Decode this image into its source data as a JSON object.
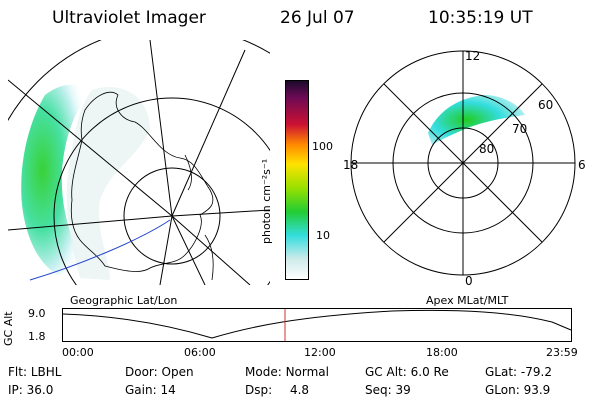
{
  "header": {
    "title": "Ultraviolet Imager",
    "date": "26 Jul 07",
    "time": "10:35:19 UT"
  },
  "colorbar": {
    "unit_label": "photon cm⁻²s⁻¹",
    "ticks": [
      "100",
      "10"
    ]
  },
  "panels": {
    "geographic_label": "Geographic Lat/Lon",
    "apex_label": "Apex MLat/MLT"
  },
  "polar_plot": {
    "mlt_labels": [
      "12",
      "18",
      "6",
      "0"
    ],
    "lat_labels": [
      "60",
      "70",
      "80"
    ]
  },
  "altitude_plot": {
    "ylabel": "GC Alt",
    "yticks": [
      "9.0",
      "1.8"
    ],
    "xticks": [
      "00:00",
      "06:00",
      "12:00",
      "18:00",
      "23:59"
    ]
  },
  "status": {
    "row1": [
      {
        "label": "Flt:",
        "value": "LBHL"
      },
      {
        "label": "Door:",
        "value": "Open"
      },
      {
        "label": "Mode:",
        "value": "Normal"
      },
      {
        "label": "GC Alt:",
        "value": "6.0 Re"
      },
      {
        "label": "GLat:",
        "value": "-79.2"
      }
    ],
    "row2": [
      {
        "label": "IP:",
        "value": "36.0"
      },
      {
        "label": "Gain:",
        "value": "14"
      },
      {
        "label": "Dsp:",
        "value": "4.8"
      },
      {
        "label": "Seq:",
        "value": "39"
      },
      {
        "label": "GLon:",
        "value": "93.9"
      }
    ]
  },
  "colors": {
    "marker": "#cc3333",
    "coastline_blue": "#2244cc",
    "aurora_green": "#22cc22",
    "aurora_cyan": "#33dddd"
  }
}
